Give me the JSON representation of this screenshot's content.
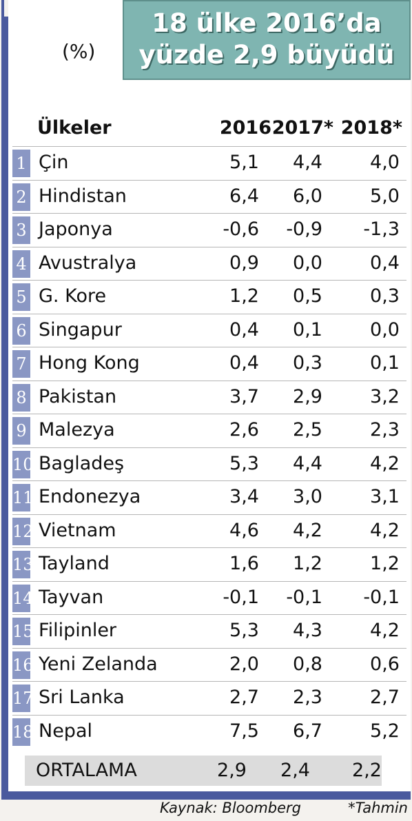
{
  "title": {
    "line1": "18 ülke 2016’da",
    "line2": "yüzde 2,9 büyüdü"
  },
  "unit": "(%)",
  "footer": {
    "source": "Kaynak: Bloomberg",
    "note": "*Tahmin"
  },
  "chart_data": {
    "type": "table",
    "columns": [
      "Ülkeler",
      "2016",
      "2017*",
      "2018*"
    ],
    "rows": [
      {
        "rank": "1",
        "country": "Çin",
        "v2016": "5,1",
        "v2017": "4,4",
        "v2018": "4,0"
      },
      {
        "rank": "2",
        "country": "Hindistan",
        "v2016": "6,4",
        "v2017": "6,0",
        "v2018": "5,0"
      },
      {
        "rank": "3",
        "country": "Japonya",
        "v2016": "-0,6",
        "v2017": "-0,9",
        "v2018": "-1,3"
      },
      {
        "rank": "4",
        "country": "Avustralya",
        "v2016": "0,9",
        "v2017": "0,0",
        "v2018": "0,4"
      },
      {
        "rank": "5",
        "country": "G. Kore",
        "v2016": "1,2",
        "v2017": "0,5",
        "v2018": "0,3"
      },
      {
        "rank": "6",
        "country": "Singapur",
        "v2016": "0,4",
        "v2017": "0,1",
        "v2018": "0,0"
      },
      {
        "rank": "7",
        "country": "Hong Kong",
        "v2016": "0,4",
        "v2017": "0,3",
        "v2018": "0,1"
      },
      {
        "rank": "8",
        "country": "Pakistan",
        "v2016": "3,7",
        "v2017": "2,9",
        "v2018": "3,2"
      },
      {
        "rank": "9",
        "country": "Malezya",
        "v2016": "2,6",
        "v2017": "2,5",
        "v2018": "2,3"
      },
      {
        "rank": "10",
        "country": "Bagladeş",
        "v2016": "5,3",
        "v2017": "4,4",
        "v2018": "4,2"
      },
      {
        "rank": "11",
        "country": "Endonezya",
        "v2016": "3,4",
        "v2017": "3,0",
        "v2018": "3,1"
      },
      {
        "rank": "12",
        "country": "Vietnam",
        "v2016": "4,6",
        "v2017": "4,2",
        "v2018": "4,2"
      },
      {
        "rank": "13",
        "country": "Tayland",
        "v2016": "1,6",
        "v2017": "1,2",
        "v2018": "1,2"
      },
      {
        "rank": "14",
        "country": "Tayvan",
        "v2016": "-0,1",
        "v2017": "-0,1",
        "v2018": "-0,1"
      },
      {
        "rank": "15",
        "country": "Filipinler",
        "v2016": "5,3",
        "v2017": "4,3",
        "v2018": "4,2"
      },
      {
        "rank": "16",
        "country": "Yeni Zelanda",
        "v2016": "2,0",
        "v2017": "0,8",
        "v2018": "0,6"
      },
      {
        "rank": "17",
        "country": "Sri Lanka",
        "v2016": "2,7",
        "v2017": "2,3",
        "v2018": "2,7"
      },
      {
        "rank": "18",
        "country": "Nepal",
        "v2016": "7,5",
        "v2017": "6,7",
        "v2018": "5,2"
      }
    ],
    "average": {
      "label": "ORTALAMA",
      "v2016": "2,9",
      "v2017": "2,4",
      "v2018": "2,2"
    }
  }
}
